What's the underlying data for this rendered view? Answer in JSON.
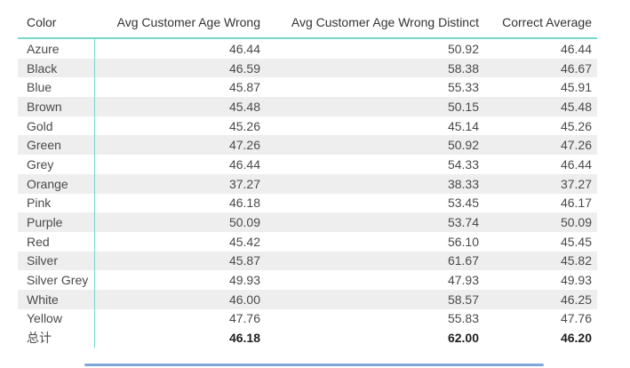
{
  "chart_data": {
    "type": "table",
    "title": "",
    "columns": [
      "Color",
      "Avg Customer Age Wrong",
      "Avg Customer Age Wrong Distinct",
      "Correct Average"
    ],
    "rows": [
      [
        "Azure",
        "46.44",
        "50.92",
        "46.44"
      ],
      [
        "Black",
        "46.59",
        "58.38",
        "46.67"
      ],
      [
        "Blue",
        "45.87",
        "55.33",
        "45.91"
      ],
      [
        "Brown",
        "45.48",
        "50.15",
        "45.48"
      ],
      [
        "Gold",
        "45.26",
        "45.14",
        "45.26"
      ],
      [
        "Green",
        "47.26",
        "50.92",
        "47.26"
      ],
      [
        "Grey",
        "46.44",
        "54.33",
        "46.44"
      ],
      [
        "Orange",
        "37.27",
        "38.33",
        "37.27"
      ],
      [
        "Pink",
        "46.18",
        "53.45",
        "46.17"
      ],
      [
        "Purple",
        "50.09",
        "53.74",
        "50.09"
      ],
      [
        "Red",
        "45.42",
        "56.10",
        "45.45"
      ],
      [
        "Silver",
        "45.87",
        "61.67",
        "45.82"
      ],
      [
        "Silver Grey",
        "49.93",
        "47.93",
        "49.93"
      ],
      [
        "White",
        "46.00",
        "58.57",
        "46.25"
      ],
      [
        "Yellow",
        "47.76",
        "55.83",
        "47.76"
      ]
    ],
    "total_row": [
      "总计",
      "46.18",
      "62.00",
      "46.20"
    ],
    "layout_hints": {
      "row_banding": "alternate light gray starting at second data row",
      "numeric_alignment": "right",
      "total_values_bold": true
    }
  },
  "colors": {
    "accent_teal": "#76d6cc",
    "band_gray": "#eeeeee",
    "header_text": "#333333",
    "body_text": "#4a4a4a",
    "total_text": "#1f1f1f",
    "scrollbar": "#7da7d9",
    "background": "#ffffff"
  }
}
